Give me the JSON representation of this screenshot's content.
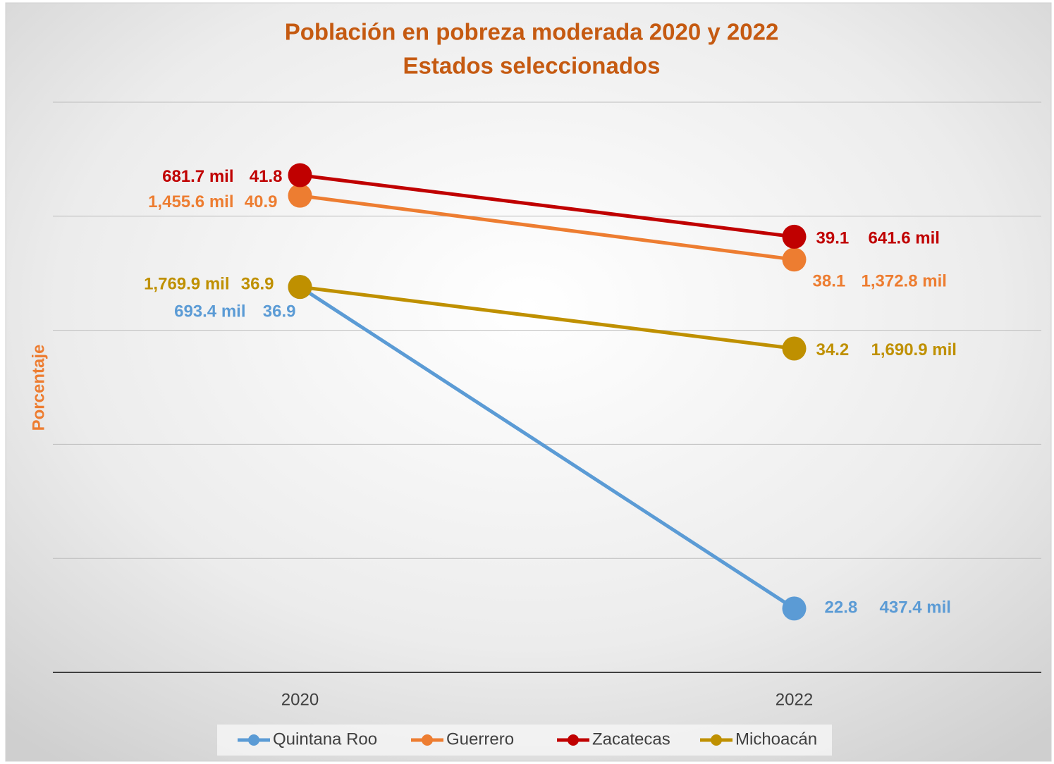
{
  "chart_data": {
    "type": "line",
    "title": "Población en pobreza moderada 2020 y 2022",
    "subtitle": "Estados seleccionados",
    "y_label": "Porcentaje",
    "categories": [
      "2020",
      "2022"
    ],
    "ylim": [
      20,
      45
    ],
    "yticks": [
      20,
      25,
      30,
      35,
      40,
      45
    ],
    "grid": true,
    "legend": "bottom",
    "series": [
      {
        "name": "Quintana Roo",
        "color": "#5b9bd5",
        "values": [
          36.9,
          22.8
        ],
        "population_labels": [
          "693.4 mil",
          "437.4 mil"
        ]
      },
      {
        "name": "Guerrero",
        "color": "#ed7d31",
        "values": [
          40.9,
          38.1
        ],
        "population_labels": [
          "1,455.6 mil",
          "1,372.8 mil"
        ]
      },
      {
        "name": "Zacatecas",
        "color": "#c00000",
        "values": [
          41.8,
          39.1
        ],
        "population_labels": [
          "681.7 mil",
          "641.6 mil"
        ]
      },
      {
        "name": "Michoacán",
        "color": "#bf9000",
        "values": [
          36.9,
          34.2
        ],
        "population_labels": [
          "1,769.9 mil",
          "1,690.9 mil"
        ]
      }
    ]
  }
}
